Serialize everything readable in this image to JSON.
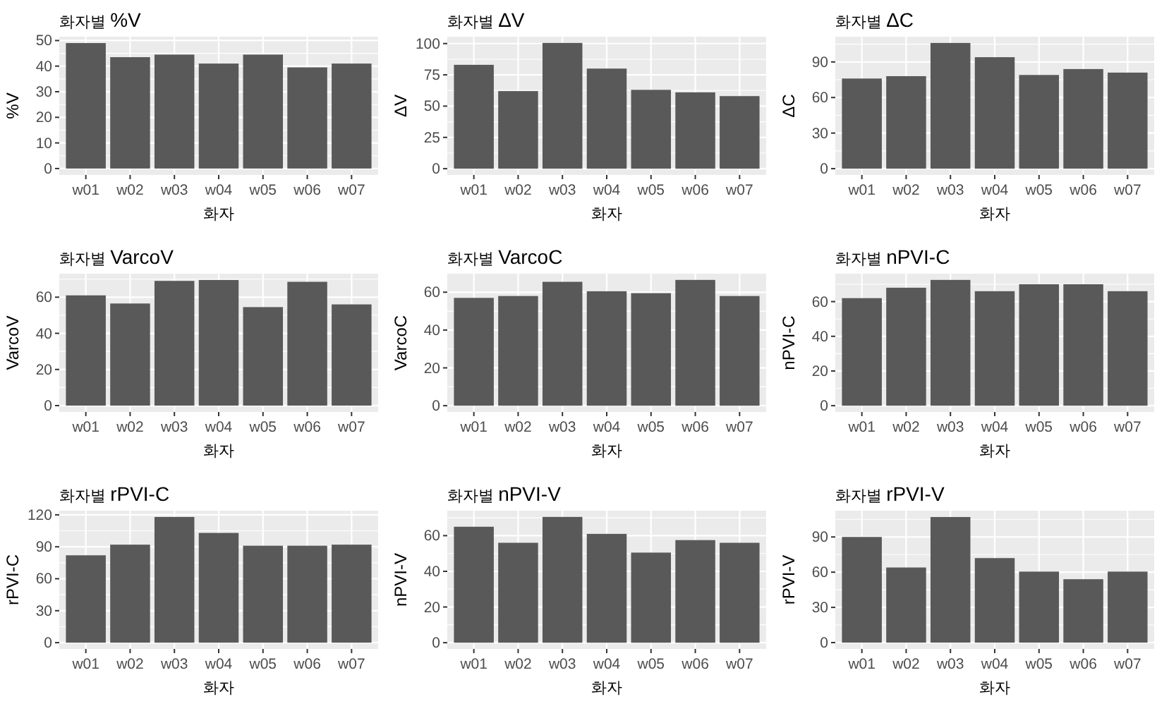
{
  "chart_data": [
    {
      "type": "bar",
      "title": "화자별 %V",
      "xlabel": "화자",
      "ylabel": "%V",
      "categories": [
        "w01",
        "w02",
        "w03",
        "w04",
        "w05",
        "w06",
        "w07"
      ],
      "values": [
        49,
        43.5,
        44.5,
        41,
        44.5,
        39.5,
        41
      ],
      "color": "#595959",
      "ylim": [
        -2.5,
        51.5
      ],
      "yticks": [
        0,
        10,
        20,
        30,
        40,
        50
      ],
      "grid": true
    },
    {
      "type": "bar",
      "title": "화자별 ΔV",
      "xlabel": "화자",
      "ylabel": "ΔV",
      "categories": [
        "w01",
        "w02",
        "w03",
        "w04",
        "w05",
        "w06",
        "w07"
      ],
      "values": [
        83,
        62,
        100.5,
        80,
        63,
        61,
        58
      ],
      "color": "#595959",
      "ylim": [
        -5,
        105.5
      ],
      "yticks": [
        0,
        25,
        50,
        75,
        100
      ],
      "grid": true
    },
    {
      "type": "bar",
      "title": "화자별 ΔC",
      "xlabel": "화자",
      "ylabel": "ΔC",
      "categories": [
        "w01",
        "w02",
        "w03",
        "w04",
        "w05",
        "w06",
        "w07"
      ],
      "values": [
        76,
        78,
        106,
        94,
        79,
        84,
        81
      ],
      "color": "#595959",
      "ylim": [
        -5.3,
        111.3
      ],
      "yticks": [
        0,
        30,
        60,
        90
      ],
      "grid": true
    },
    {
      "type": "bar",
      "title": "화자별 VarcoV",
      "xlabel": "화자",
      "ylabel": "VarcoV",
      "categories": [
        "w01",
        "w02",
        "w03",
        "w04",
        "w05",
        "w06",
        "w07"
      ],
      "values": [
        61,
        56.5,
        69,
        69.5,
        54.5,
        68.5,
        56
      ],
      "color": "#595959",
      "ylim": [
        -3.5,
        73
      ],
      "yticks": [
        0,
        20,
        40,
        60
      ],
      "grid": true
    },
    {
      "type": "bar",
      "title": "화자별 VarcoC",
      "xlabel": "화자",
      "ylabel": "VarcoC",
      "categories": [
        "w01",
        "w02",
        "w03",
        "w04",
        "w05",
        "w06",
        "w07"
      ],
      "values": [
        57,
        58,
        65.5,
        60.5,
        59.5,
        66.5,
        58
      ],
      "color": "#595959",
      "ylim": [
        -3.3,
        69.8
      ],
      "yticks": [
        0,
        20,
        40,
        60
      ],
      "grid": true
    },
    {
      "type": "bar",
      "title": "화자별 nPVI-C",
      "xlabel": "화자",
      "ylabel": "nPVI-C",
      "categories": [
        "w01",
        "w02",
        "w03",
        "w04",
        "w05",
        "w06",
        "w07"
      ],
      "values": [
        62,
        68,
        72.5,
        66,
        70,
        70,
        66
      ],
      "color": "#595959",
      "ylim": [
        -3.6,
        76.1
      ],
      "yticks": [
        0,
        20,
        40,
        60
      ],
      "grid": true
    },
    {
      "type": "bar",
      "title": "화자별 rPVI-C",
      "xlabel": "화자",
      "ylabel": "rPVI-C",
      "categories": [
        "w01",
        "w02",
        "w03",
        "w04",
        "w05",
        "w06",
        "w07"
      ],
      "values": [
        82,
        92,
        118,
        103,
        91,
        91,
        92
      ],
      "color": "#595959",
      "ylim": [
        -5.9,
        123.9
      ],
      "yticks": [
        0,
        30,
        60,
        90,
        120
      ],
      "grid": true
    },
    {
      "type": "bar",
      "title": "화자별 nPVI-V",
      "xlabel": "화자",
      "ylabel": "nPVI-V",
      "categories": [
        "w01",
        "w02",
        "w03",
        "w04",
        "w05",
        "w06",
        "w07"
      ],
      "values": [
        65,
        56,
        70.5,
        61,
        50.5,
        57.5,
        56
      ],
      "color": "#595959",
      "ylim": [
        -3.5,
        74
      ],
      "yticks": [
        0,
        20,
        40,
        60
      ],
      "grid": true
    },
    {
      "type": "bar",
      "title": "화자별 rPVI-V",
      "xlabel": "화자",
      "ylabel": "rPVI-V",
      "categories": [
        "w01",
        "w02",
        "w03",
        "w04",
        "w05",
        "w06",
        "w07"
      ],
      "values": [
        90,
        64,
        107,
        72,
        60.5,
        54,
        60.5
      ],
      "color": "#595959",
      "ylim": [
        -5.4,
        112.4
      ],
      "yticks": [
        0,
        30,
        60,
        90
      ],
      "grid": true
    }
  ]
}
